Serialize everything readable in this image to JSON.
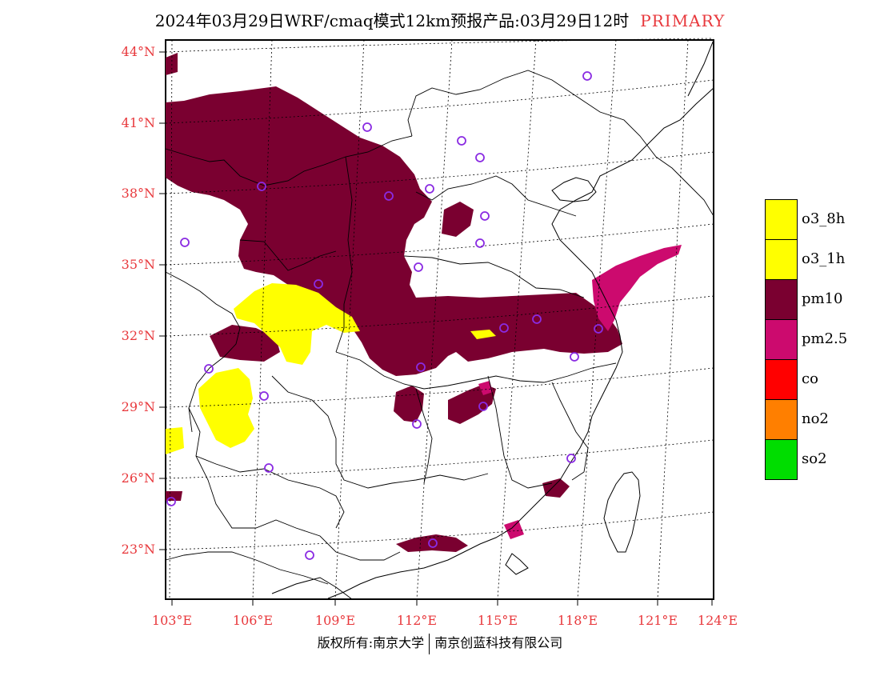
{
  "title": {
    "text": "2024年03月29日WRF/cmaq模式12km预报产品:03月29日12时",
    "tag": "PRIMARY",
    "tag_color": "#e8383c"
  },
  "map": {
    "lat_labels": [
      "44°N",
      "41°N",
      "38°N",
      "35°N",
      "32°N",
      "29°N",
      "26°N",
      "23°N"
    ],
    "lon_labels": [
      "103°E",
      "106°E",
      "109°E",
      "112°E",
      "115°E",
      "118°E",
      "121°E",
      "124°E"
    ],
    "label_color": "#e8383c",
    "station_marker_color": "#8a2be2"
  },
  "legend": [
    {
      "label": "o3_8h",
      "color": "#ffff00"
    },
    {
      "label": "o3_1h",
      "color": "#ffff00"
    },
    {
      "label": "pm10",
      "color": "#7a0030"
    },
    {
      "label": "pm2.5",
      "color": "#cc0a6e"
    },
    {
      "label": "co",
      "color": "#ff0000"
    },
    {
      "label": "no2",
      "color": "#ff7f00"
    },
    {
      "label": "so2",
      "color": "#00dd00"
    }
  ],
  "footer": {
    "left": "版权所有:南京大学",
    "right": "南京创蓝科技有限公司"
  }
}
